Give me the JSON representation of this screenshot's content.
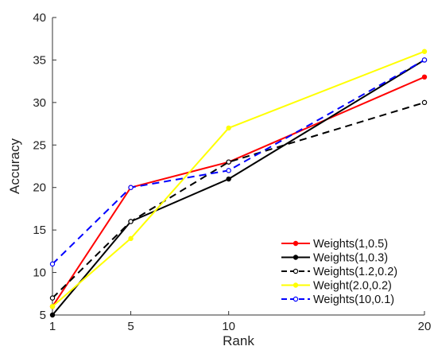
{
  "chart_data": {
    "type": "line",
    "title": "",
    "xlabel": "Rank",
    "ylabel": "Accuracy",
    "x": [
      1,
      5,
      10,
      20
    ],
    "xticks": [
      "1",
      "5",
      "10",
      "20"
    ],
    "yticks": [
      "5",
      "10",
      "15",
      "20",
      "25",
      "30",
      "35",
      "40"
    ],
    "xlim": [
      1,
      20
    ],
    "ylim": [
      5,
      40
    ],
    "grid": false,
    "legend_position": "bottom-right",
    "series": [
      {
        "name": "Weights(1,0.5)",
        "color": "#ff0000",
        "dash": "solid",
        "marker": "filled",
        "values": [
          6,
          20,
          23,
          33
        ]
      },
      {
        "name": "Weights(1,0.3)",
        "color": "#000000",
        "dash": "solid",
        "marker": "filled",
        "values": [
          5,
          16,
          21,
          35
        ]
      },
      {
        "name": "Weights(1.2,0.2)",
        "color": "#000000",
        "dash": "dashed",
        "marker": "open",
        "values": [
          7,
          16,
          23,
          30
        ]
      },
      {
        "name": "Weight(2.0,0.2)",
        "color": "#ffff00",
        "dash": "solid",
        "marker": "filled",
        "values": [
          6,
          14,
          27,
          36
        ]
      },
      {
        "name": "Weights(10,0.1)",
        "color": "#0000ff",
        "dash": "dashed",
        "marker": "open",
        "values": [
          11,
          20,
          22,
          35
        ]
      }
    ]
  }
}
